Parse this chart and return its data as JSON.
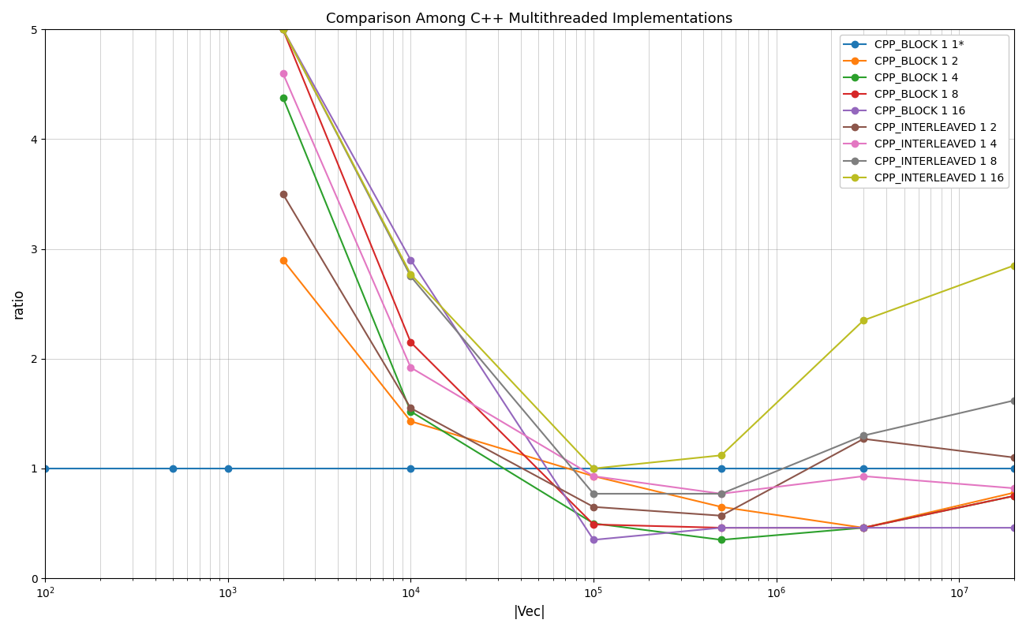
{
  "title": "Comparison Among C++ Multithreaded Implementations",
  "xlabel": "|Vec|",
  "ylabel": "ratio",
  "ylim": [
    0,
    5
  ],
  "yticks": [
    0,
    1,
    2,
    3,
    4,
    5
  ],
  "figsize": [
    13.0,
    8.0
  ],
  "dpi": 100,
  "series": [
    {
      "label": "CPP_BLOCK 1 1*",
      "color": "#1f77b4",
      "x": [
        100,
        500,
        1000,
        10000,
        100000,
        500000,
        3000000,
        20000000
      ],
      "y": [
        1.0,
        1.0,
        1.0,
        1.0,
        1.0,
        1.0,
        1.0,
        1.0
      ]
    },
    {
      "label": "CPP_BLOCK 1 2",
      "color": "#ff7f0e",
      "x": [
        2000,
        10000,
        100000,
        500000,
        3000000,
        20000000
      ],
      "y": [
        2.9,
        1.43,
        0.93,
        0.65,
        0.46,
        0.78
      ]
    },
    {
      "label": "CPP_BLOCK 1 4",
      "color": "#2ca02c",
      "x": [
        2000,
        10000,
        100000,
        500000,
        3000000,
        20000000
      ],
      "y": [
        4.38,
        1.52,
        0.5,
        0.35,
        0.46,
        0.75
      ]
    },
    {
      "label": "CPP_BLOCK 1 8",
      "color": "#d62728",
      "x": [
        2000,
        10000,
        100000,
        500000,
        3000000,
        20000000
      ],
      "y": [
        5.0,
        2.15,
        0.49,
        0.46,
        0.46,
        0.75
      ]
    },
    {
      "label": "CPP_BLOCK 1 16",
      "color": "#9467bd",
      "x": [
        2000,
        10000,
        100000,
        500000,
        3000000,
        20000000
      ],
      "y": [
        5.0,
        2.9,
        0.35,
        0.46,
        0.46,
        0.46
      ]
    },
    {
      "label": "CPP_INTERLEAVED 1 2",
      "color": "#8c564b",
      "x": [
        2000,
        10000,
        100000,
        500000,
        3000000,
        20000000
      ],
      "y": [
        3.5,
        1.55,
        0.65,
        0.57,
        1.27,
        1.1
      ]
    },
    {
      "label": "CPP_INTERLEAVED 1 4",
      "color": "#e377c2",
      "x": [
        2000,
        10000,
        100000,
        500000,
        3000000,
        20000000
      ],
      "y": [
        4.6,
        1.92,
        0.93,
        0.77,
        0.93,
        0.82
      ]
    },
    {
      "label": "CPP_INTERLEAVED 1 8",
      "color": "#7f7f7f",
      "x": [
        2000,
        10000,
        100000,
        500000,
        3000000,
        20000000
      ],
      "y": [
        5.0,
        2.75,
        0.77,
        0.77,
        1.3,
        1.62
      ]
    },
    {
      "label": "CPP_INTERLEAVED 1 16",
      "color": "#bcbd22",
      "x": [
        2000,
        10000,
        100000,
        500000,
        3000000,
        20000000
      ],
      "y": [
        5.0,
        2.77,
        1.0,
        1.12,
        2.35,
        2.85
      ]
    }
  ]
}
